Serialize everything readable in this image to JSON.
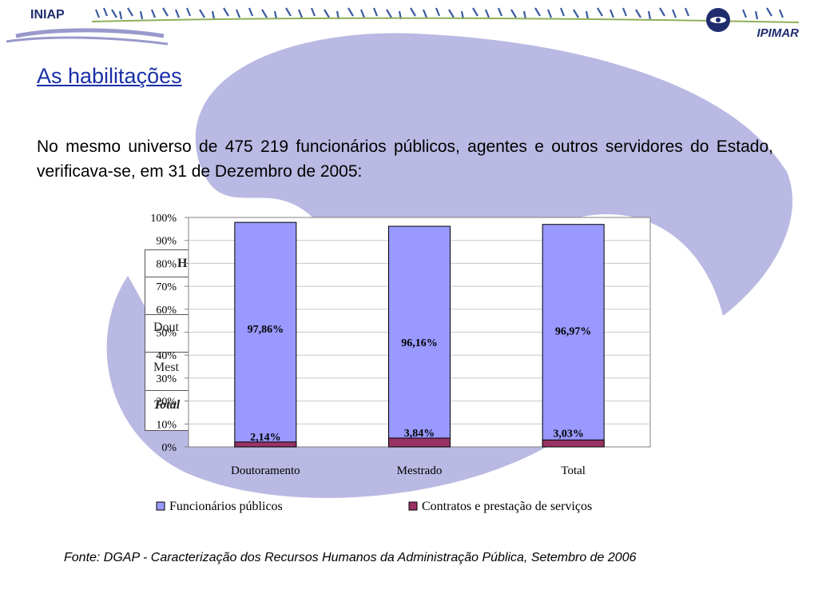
{
  "header": {
    "logo_left": "INIAP",
    "logo_right": "IPIMAR"
  },
  "slide": {
    "title": "As habilitações",
    "intro": "No mesmo universo de 475 219 funcionários públicos, agentes e outros servidores do Estado, verificava-se, em 31 de Dezembro de 2005:",
    "source": "Fonte: DGAP - Caracterização dos Recursos Humanos da Administração Pública, Setembro de 2006"
  },
  "hidden_table_fragments": {
    "h": "H",
    "dout": "Dout",
    "mest": "Mest",
    "total": "Total"
  },
  "colors": {
    "primary_series": "#9999ff",
    "secondary_series": "#993366",
    "title": "#1a2fa8",
    "background_shape": "#b9b9e3"
  },
  "chart_data": {
    "type": "bar",
    "stacked": true,
    "percent_stacked": true,
    "categories": [
      "Doutoramento",
      "Mestrado",
      "Total"
    ],
    "series": [
      {
        "name": "Funcionários públicos",
        "values": [
          97.86,
          96.16,
          96.97
        ],
        "labels": [
          "97,86%",
          "96,16%",
          "96,97%"
        ],
        "color": "#9999ff"
      },
      {
        "name": "Contratos e prestação de serviços",
        "values": [
          2.14,
          3.84,
          3.03
        ],
        "labels": [
          "2,14%",
          "3,84%",
          "3,03%"
        ],
        "color": "#993366"
      }
    ],
    "yticks": [
      "0%",
      "10%",
      "20%",
      "30%",
      "40%",
      "50%",
      "60%",
      "70%",
      "80%",
      "90%",
      "100%"
    ],
    "ylim": [
      0,
      100
    ],
    "grid": true,
    "legend": "bottom"
  }
}
